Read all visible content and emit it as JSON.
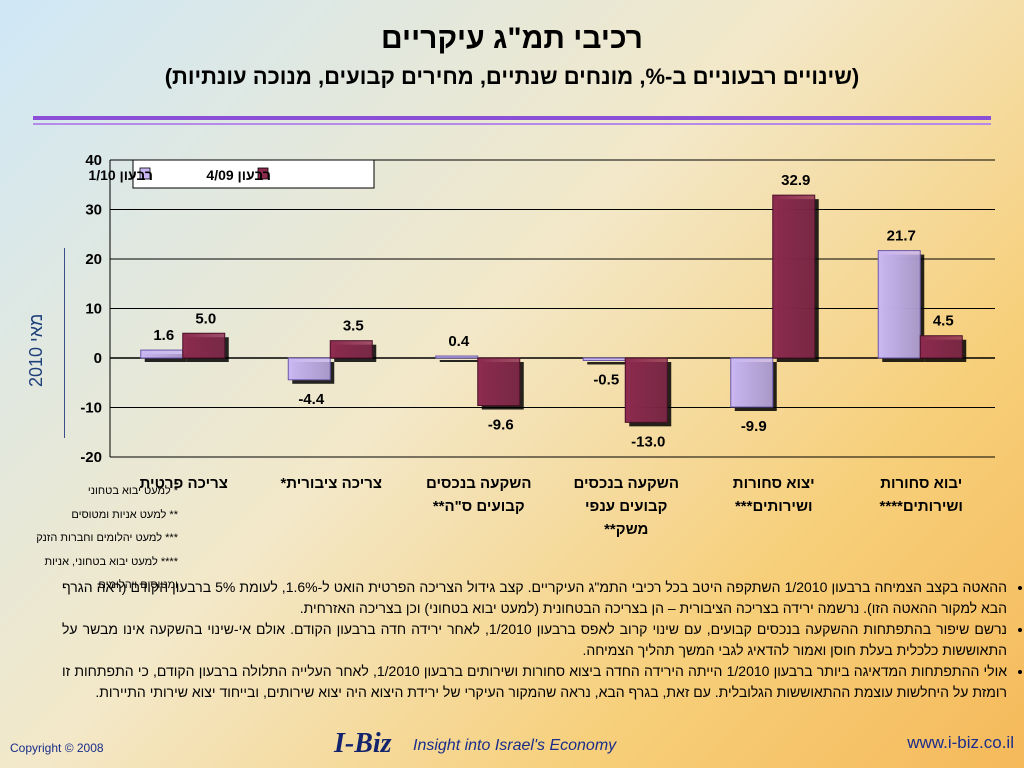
{
  "header": {
    "title": "רכיבי תמ\"ג עיקריים",
    "subtitle": "(שינויים רבעוניים ב-%, מונחים שנתיים, מחירים קבועים, מנוכה עונתיות)"
  },
  "side_label": "מאי 2010",
  "chart_data": {
    "type": "bar",
    "categories": [
      [
        "צריכה פרטית"
      ],
      [
        "צריכה ציבורית*"
      ],
      [
        "השקעה בנכסים",
        "קבועים ס\"ה**"
      ],
      [
        "השקעה בנכסים",
        "קבועים ענפי",
        "משק**"
      ],
      [
        "יצוא סחורות",
        "ושירותים***"
      ],
      [
        "יבוא סחורות",
        "ושירותים****"
      ]
    ],
    "series": [
      {
        "name": "רבעון 1/10",
        "values": [
          1.6,
          -4.4,
          0.4,
          -0.5,
          -9.9,
          21.7
        ],
        "color": "#c9b6f2"
      },
      {
        "name": "רבעון 4/09",
        "values": [
          5.0,
          3.5,
          -9.6,
          -13.0,
          32.9,
          4.5
        ],
        "color": "#8c2a4e"
      }
    ],
    "value_labels": [
      [
        "1.6",
        "-4.4",
        "0.4",
        "-0.5",
        "-9.9",
        "21.7"
      ],
      [
        "5.0",
        "3.5",
        "-9.6",
        "-13.0",
        "32.9",
        "4.5"
      ]
    ],
    "yticks": [
      "40",
      "30",
      "20",
      "10",
      "0",
      "-10",
      "-20"
    ],
    "ylim": [
      -20,
      40
    ],
    "grid": true,
    "legend_position": "top-left"
  },
  "notes": [
    "* למעט יבוא בטחוני",
    "** למעט אניות ומטוסים",
    "*** למעט יהלומים וחברות הזנק",
    "**** למעט יבוא בטחוני, אניות ומטוסים ויהלומים"
  ],
  "bullets": [
    "ההאטה בקצב הצמיחה ברבעון 1/2010 השתקפה היטב בכל רכיבי התמ\"ג העיקריים. קצב גידול הצריכה הפרטית הואט ל-1.6%, לעומת 5% ברבעון הקודם (ראה הגרף הבא למקור ההאטה הזו). נרשמה ירידה בצריכה הציבורית – הן בצריכה הבטחונית (למעט יבוא בטחוני) וכן בצריכה האזרחית.",
    "נרשם שיפור בהתפתחות ההשקעה בנכסים קבועים, עם שינוי קרוב לאפס ברבעון 1/2010, לאחר ירידה חדה ברבעון הקודם. אולם אי-שינוי בהשקעה אינו מבשר על התאוששות כלכלית בעלת חוסן ואמור להדאיג לגבי המשך תהליך הצמיחה.",
    "אולי ההתפתחות המדאיגה ביותר ברבעון 1/2010 הייתה הירידה החדה ביצוא סחורות ושירותים ברבעון 1/2010, לאחר העלייה התלולה ברבעון הקודם, כי התפתחות זו רומזת על היחלשות עוצמת ההתאוששות הגלובלית. עם זאת, בגרף הבא, נראה שהמקור העיקרי של ירידת היצוא היה יצוא שירותים, ובייחוד יצוא שירותי התיירות."
  ],
  "footer": {
    "copyright": "Copyright © 2008",
    "logo": "I-Biz",
    "tagline": "Insight into Israel's Economy",
    "url": "www.i-biz.co.il"
  }
}
